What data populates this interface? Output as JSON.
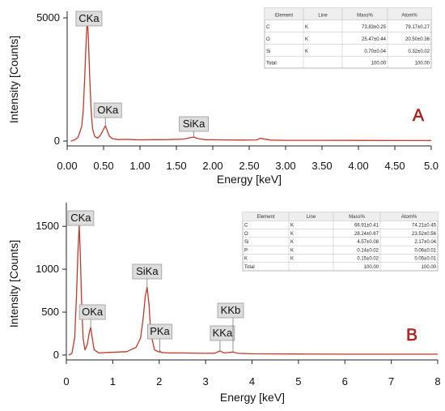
{
  "colors": {
    "spectrum": "#c0392b",
    "axis": "#222222",
    "tag_fill": "#dcdcdc",
    "tag_stroke": "#9a9a9a",
    "letter": "#c62828"
  },
  "chart_data": [
    {
      "type": "line",
      "panel_label": "A",
      "xlabel": "Energy [keV]",
      "ylabel": "Intensity [Counts]",
      "xlim": [
        0,
        5
      ],
      "ylim": [
        0,
        5000
      ],
      "xticks": [
        "0.00",
        "0.50",
        "1.00",
        "1.50",
        "2.00",
        "2.50",
        "3.00",
        "3.50",
        "4.00",
        "4.50",
        "5.0"
      ],
      "yticks": [
        "0",
        "5000"
      ],
      "x": [
        0.05,
        0.1,
        0.15,
        0.2,
        0.22,
        0.24,
        0.26,
        0.277,
        0.29,
        0.31,
        0.33,
        0.35,
        0.38,
        0.42,
        0.46,
        0.5,
        0.525,
        0.55,
        0.58,
        0.62,
        0.7,
        0.8,
        0.9,
        1.0,
        1.2,
        1.4,
        1.6,
        1.68,
        1.74,
        1.8,
        1.9,
        2.1,
        2.4,
        2.6,
        2.65,
        2.8,
        3.0,
        3.5,
        4.0,
        4.5,
        5.0
      ],
      "y": [
        0,
        40,
        150,
        600,
        1200,
        2500,
        4000,
        4950,
        4300,
        2600,
        1200,
        480,
        180,
        120,
        250,
        480,
        620,
        420,
        200,
        100,
        60,
        70,
        60,
        50,
        55,
        60,
        80,
        130,
        160,
        100,
        55,
        50,
        40,
        45,
        110,
        40,
        30,
        30,
        25,
        20,
        20
      ],
      "peaks": [
        {
          "label": "CKa",
          "energy": 0.277,
          "counts": 4950
        },
        {
          "label": "OKa",
          "energy": 0.525,
          "counts": 620
        },
        {
          "label": "SiKa",
          "energy": 1.74,
          "counts": 160
        }
      ],
      "table": {
        "headers": [
          "Element",
          "Line",
          "Mass%",
          "Atom%"
        ],
        "rows": [
          [
            "C",
            "K",
            "73.83±0.25",
            "79.17±0.27"
          ],
          [
            "O",
            "K",
            "25.47±0.44",
            "20.50±0.36"
          ],
          [
            "Si",
            "K",
            "0.70±0.04",
            "0.32±0.02"
          ],
          [
            "Total",
            "",
            "100.00",
            "100.00"
          ]
        ]
      }
    },
    {
      "type": "line",
      "panel_label": "B",
      "xlabel": "Energy [keV]",
      "ylabel": "Intensity [Counts]",
      "xlim": [
        0,
        8
      ],
      "ylim": [
        0,
        1700
      ],
      "xticks": [
        "0",
        "1",
        "2",
        "3",
        "4",
        "5",
        "6",
        "7",
        "8"
      ],
      "yticks": [
        "0",
        "500",
        "1000",
        "1500"
      ],
      "x": [
        0.05,
        0.12,
        0.18,
        0.22,
        0.25,
        0.277,
        0.3,
        0.33,
        0.36,
        0.4,
        0.45,
        0.5,
        0.525,
        0.55,
        0.6,
        0.7,
        0.9,
        1.1,
        1.3,
        1.5,
        1.6,
        1.66,
        1.7,
        1.74,
        1.78,
        1.82,
        1.9,
        2.0,
        2.013,
        2.05,
        2.2,
        2.5,
        3.0,
        3.2,
        3.31,
        3.4,
        3.59,
        3.7,
        4.0,
        5.0,
        6.0,
        7.0,
        8.0
      ],
      "y": [
        0,
        20,
        200,
        700,
        1200,
        1510,
        1200,
        600,
        200,
        60,
        120,
        280,
        320,
        220,
        60,
        25,
        30,
        35,
        40,
        90,
        200,
        450,
        680,
        790,
        600,
        250,
        60,
        35,
        45,
        30,
        25,
        25,
        20,
        22,
        48,
        25,
        35,
        20,
        15,
        12,
        10,
        10,
        10
      ],
      "peaks": [
        {
          "label": "CKa",
          "energy": 0.277,
          "counts": 1510
        },
        {
          "label": "OKa",
          "energy": 0.525,
          "counts": 320
        },
        {
          "label": "SiKa",
          "energy": 1.74,
          "counts": 790
        },
        {
          "label": "PKa",
          "energy": 2.013,
          "counts": 45
        },
        {
          "label": "KKa",
          "energy": 3.31,
          "counts": 48
        },
        {
          "label": "KKb",
          "energy": 3.59,
          "counts": 35
        }
      ],
      "table": {
        "headers": [
          "Element",
          "Line",
          "Mass%",
          "Atom%"
        ],
        "rows": [
          [
            "C",
            "K",
            "66.91±0.41",
            "74.21±0.45"
          ],
          [
            "O",
            "K",
            "28.24±0.67",
            "23.52±0.56"
          ],
          [
            "Si",
            "K",
            "4.57±0.08",
            "2.17±0.04"
          ],
          [
            "P",
            "K",
            "0.14±0.02",
            "0.06±0.01"
          ],
          [
            "K",
            "K",
            "0.15±0.02",
            "0.05±0.01"
          ],
          [
            "Total",
            "",
            "100.00",
            "100.00"
          ]
        ]
      }
    }
  ]
}
